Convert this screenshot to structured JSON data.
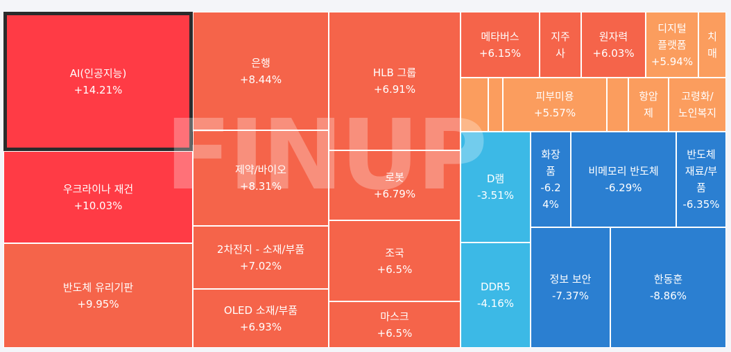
{
  "chart_data": {
    "type": "treemap",
    "watermark": "FINUP",
    "cells": [
      {
        "name": "AI(인공지능)",
        "value": "+14.21%",
        "color": "#ff3b45",
        "selected": true
      },
      {
        "name": "우크라이나 재건",
        "value": "+10.03%",
        "color": "#ff3b45"
      },
      {
        "name": "반도체 유리기판",
        "value": "+9.95%",
        "color": "#f5644a"
      },
      {
        "name": "은행",
        "value": "+8.44%",
        "color": "#f5644a"
      },
      {
        "name": "제약/바이오",
        "value": "+8.31%",
        "color": "#f5644a"
      },
      {
        "name": "2차전지 - 소재/부품",
        "value": "+7.02%",
        "color": "#f5644a"
      },
      {
        "name": "OLED 소재/부품",
        "value": "+6.93%",
        "color": "#f5644a"
      },
      {
        "name": "HLB 그룹",
        "value": "+6.91%",
        "color": "#f5644a"
      },
      {
        "name": "로봇",
        "value": "+6.79%",
        "color": "#f5644a"
      },
      {
        "name": "조국",
        "value": "+6.5%",
        "color": "#f5644a"
      },
      {
        "name": "마스크",
        "value": "+6.5%",
        "color": "#f5644a"
      },
      {
        "name": "메타버스",
        "value": "+6.15%",
        "color": "#f5644a"
      },
      {
        "name": "지주\n사",
        "value": "",
        "color": "#f5644a"
      },
      {
        "name": "원자력",
        "value": "+6.03%",
        "color": "#f5644a"
      },
      {
        "name": "디지털\n플랫폼",
        "value": "+5.94%",
        "color": "#fb9d5e"
      },
      {
        "name": "치\n매",
        "value": "",
        "color": "#fb9d5e"
      },
      {
        "name": "",
        "value": "",
        "color": "#fb9d5e"
      },
      {
        "name": "",
        "value": "",
        "color": "#fb9d5e"
      },
      {
        "name": "피부미용",
        "value": "+5.57%",
        "color": "#fb9d5e"
      },
      {
        "name": "",
        "value": "",
        "color": "#fb9d5e"
      },
      {
        "name": "항암\n제",
        "value": "",
        "color": "#fb9d5e"
      },
      {
        "name": "고령화/\n노인복지",
        "value": "",
        "color": "#fb9d5e"
      },
      {
        "name": "D램",
        "value": "-3.51%",
        "color": "#3cb9e6"
      },
      {
        "name": "DDR5",
        "value": "-4.16%",
        "color": "#3cb9e6"
      },
      {
        "name": "화장\n품",
        "value": "-6.2\n4%",
        "color": "#2b7fd1"
      },
      {
        "name": "비메모리 반도체",
        "value": "-6.29%",
        "color": "#2b7fd1"
      },
      {
        "name": "반도체\n재료/부\n품",
        "value": "-6.35%",
        "color": "#2b7fd1"
      },
      {
        "name": "정보 보안",
        "value": "-7.37%",
        "color": "#2b7fd1"
      },
      {
        "name": "한동훈",
        "value": "-8.86%",
        "color": "#2b7fd1"
      }
    ]
  }
}
